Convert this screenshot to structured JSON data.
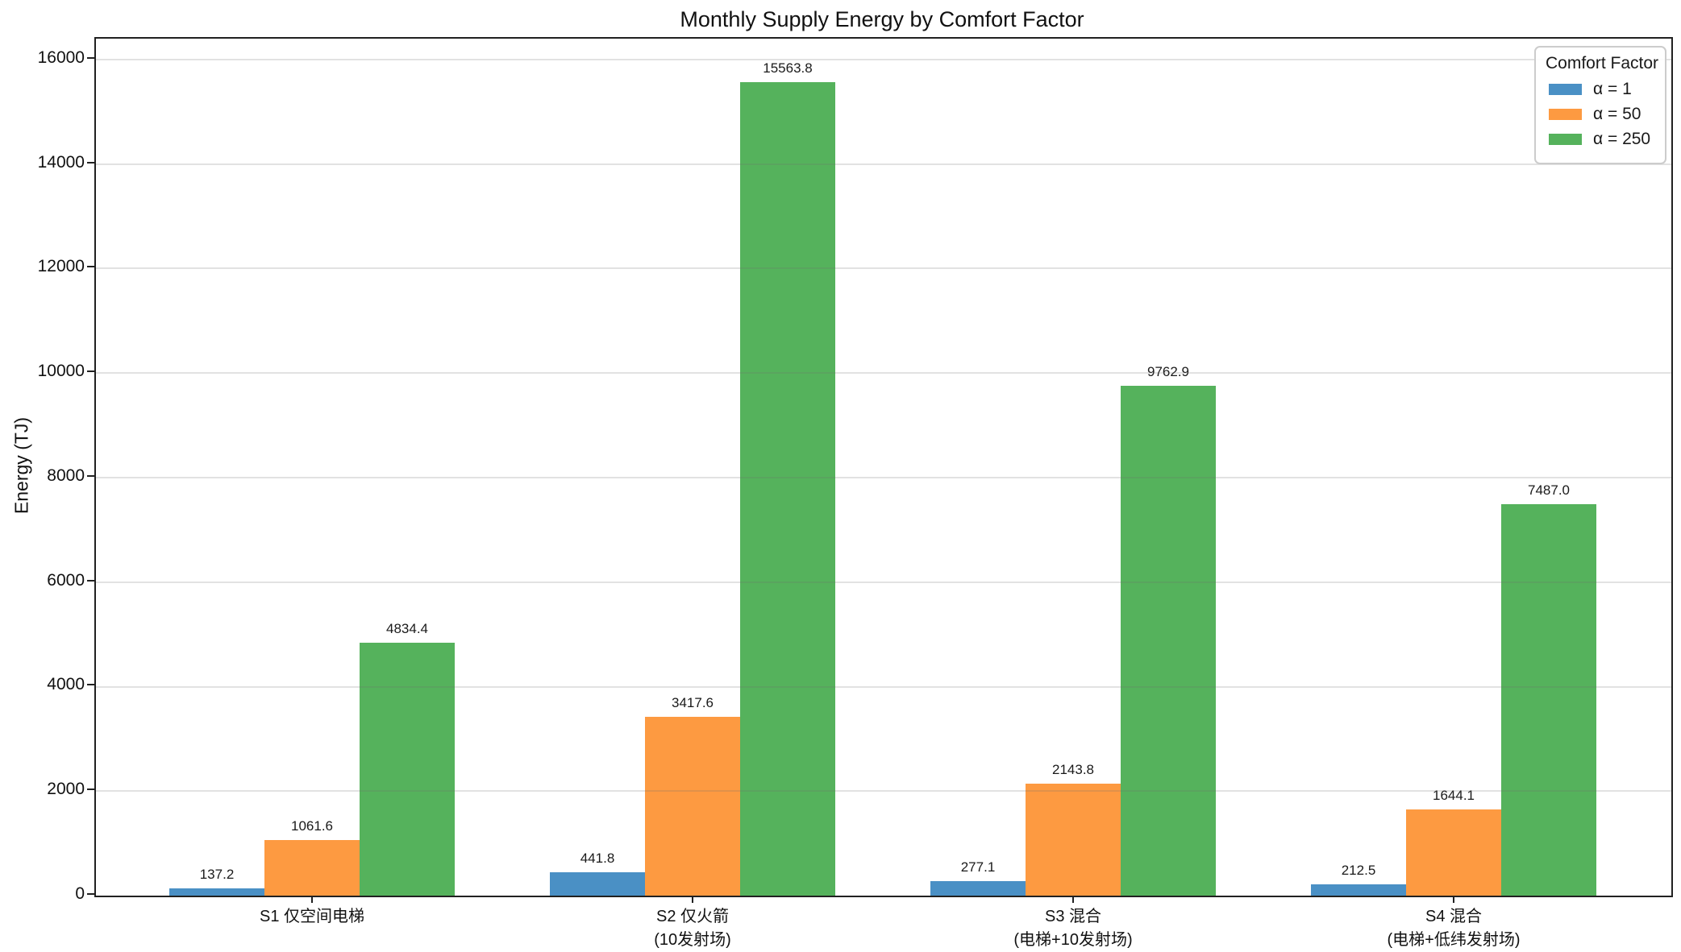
{
  "chart_data": {
    "type": "bar",
    "title": "Monthly Supply Energy by Comfort Factor",
    "ylabel": "Energy (TJ)",
    "xlabel": "",
    "categories": [
      "S1 仅空间电梯",
      "S2 仅火箭\n(10发射场)",
      "S3 混合\n(电梯+10发射场)",
      "S4 混合\n(电梯+低纬发射场)"
    ],
    "series": [
      {
        "name": "α = 1",
        "color": "#4a90c5",
        "values": [
          137.2,
          441.8,
          277.1,
          212.5
        ]
      },
      {
        "name": "α = 50",
        "color": "#fd9a41",
        "values": [
          1061.6,
          3417.6,
          2143.8,
          1644.1
        ]
      },
      {
        "name": "α = 250",
        "color": "#55b25c",
        "values": [
          4834.4,
          15563.8,
          9762.9,
          7487.0
        ]
      }
    ],
    "value_labels": [
      [
        "137.2",
        "441.8",
        "277.1",
        "212.5"
      ],
      [
        "1061.6",
        "3417.6",
        "2143.8",
        "1644.1"
      ],
      [
        "4834.4",
        "15563.8",
        "9762.9",
        "7487.0"
      ]
    ],
    "yticks": [
      0,
      2000,
      4000,
      6000,
      8000,
      10000,
      12000,
      14000,
      16000
    ],
    "ylim": [
      0,
      16400
    ],
    "grid": true,
    "legend": {
      "title": "Comfort Factor",
      "position": "upper right",
      "entries": [
        "α = 1",
        "α = 50",
        "α = 250"
      ]
    }
  }
}
